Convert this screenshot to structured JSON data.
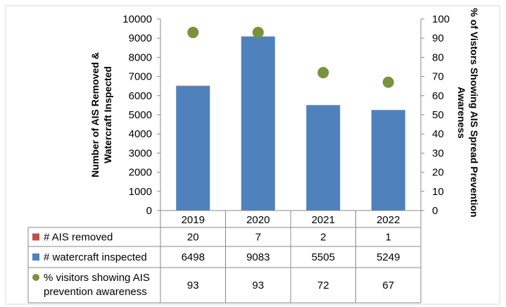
{
  "chart_data": {
    "type": "bar",
    "stacked": true,
    "categories": [
      "2019",
      "2020",
      "2021",
      "2022"
    ],
    "series": [
      {
        "name": "# watercraft inspected",
        "values": [
          6498,
          9083,
          5505,
          5249
        ],
        "color": "#4F81BD",
        "axis": "left",
        "kind": "bar"
      },
      {
        "name": "# AIS removed",
        "values": [
          20,
          7,
          2,
          1
        ],
        "color": "#C0504D",
        "axis": "left",
        "kind": "bar"
      },
      {
        "name": "% visitors showing AIS prevention awareness",
        "values": [
          93,
          93,
          72,
          67
        ],
        "color": "#77933C",
        "axis": "right",
        "kind": "point"
      }
    ],
    "legend_order": [
      1,
      0,
      2
    ],
    "ylabel": "Number of AIS Removed & Watercraft Inspected",
    "y2label": "% of Vistors Showing AIS Spread Prevention Awareness",
    "ylim": [
      0,
      10000
    ],
    "yticks": [
      0,
      1000,
      2000,
      3000,
      4000,
      5000,
      6000,
      7000,
      8000,
      9000,
      10000
    ],
    "y2lim": [
      0,
      100
    ],
    "y2ticks": [
      0,
      10,
      20,
      30,
      40,
      50,
      60,
      70,
      80,
      90,
      100
    ],
    "grid": false,
    "legend_placement": "data-table-left"
  }
}
